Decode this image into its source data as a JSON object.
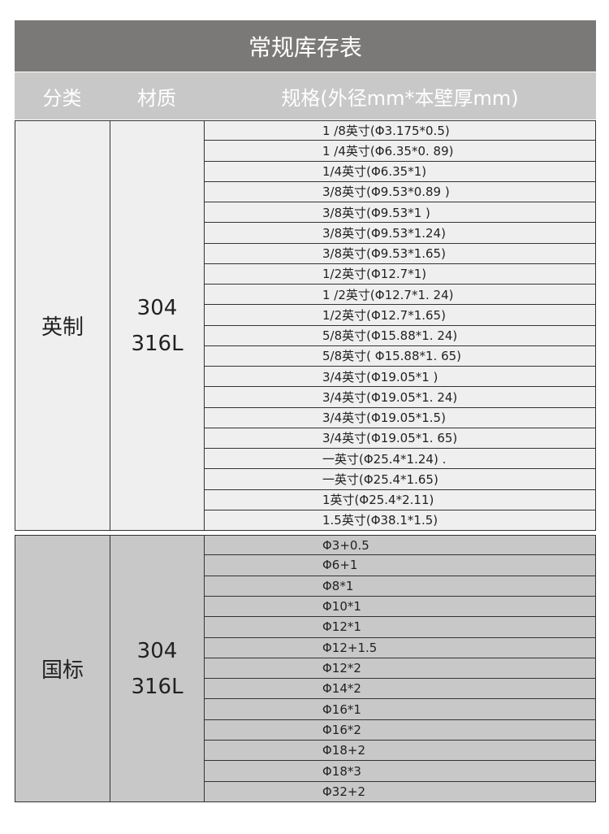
{
  "title": "常规库存表",
  "header": [
    "分类",
    "材质",
    "规格(外径mm*本壁厚mm)"
  ],
  "sections": [
    {
      "category": "英制",
      "material": [
        "304",
        "316L"
      ],
      "specs": [
        "1 /8英寸(Φ3.175*0.5)",
        "1 /4英寸(Φ6.35*0. 89)",
        "1/4英寸(Φ6.35*1)",
        "3/8英寸(Φ9.53*0.89 )",
        "3/8英寸(Φ9.53*1 )",
        "3/8英寸(Φ9.53*1.24)",
        "3/8英寸(Φ9.53*1.65)",
        "1/2英寸(Φ12.7*1)",
        "1 /2英寸(Φ12.7*1. 24)",
        "1/2英寸(Φ12.7*1.65)",
        "5/8英寸(Φ15.88*1. 24)",
        "5/8英寸( Φ15.88*1. 65)",
        "3/4英寸(Φ19.05*1 )",
        "3/4英寸(Φ19.05*1. 24)",
        "3/4英寸(Φ19.05*1.5)",
        "3/4英寸(Φ19.05*1. 65)",
        "一英寸(Φ25.4*1.24) .",
        "一英寸(Φ25.4*1.65)",
        "1英寸(Φ25.4*2.11)",
        "1.5英寸(Φ38.1*1.5)"
      ]
    },
    {
      "category": "国标",
      "material": [
        "304",
        "316L"
      ],
      "specs": [
        "Φ3+0.5",
        "Φ6+1",
        "Φ8*1",
        "Φ10*1",
        "Φ12*1",
        "Φ12+1.5",
        "Φ12*2",
        "Φ14*2",
        "Φ16*1",
        "Φ16*2",
        "Φ18+2",
        "Φ18*3",
        "Φ32+2"
      ]
    }
  ]
}
